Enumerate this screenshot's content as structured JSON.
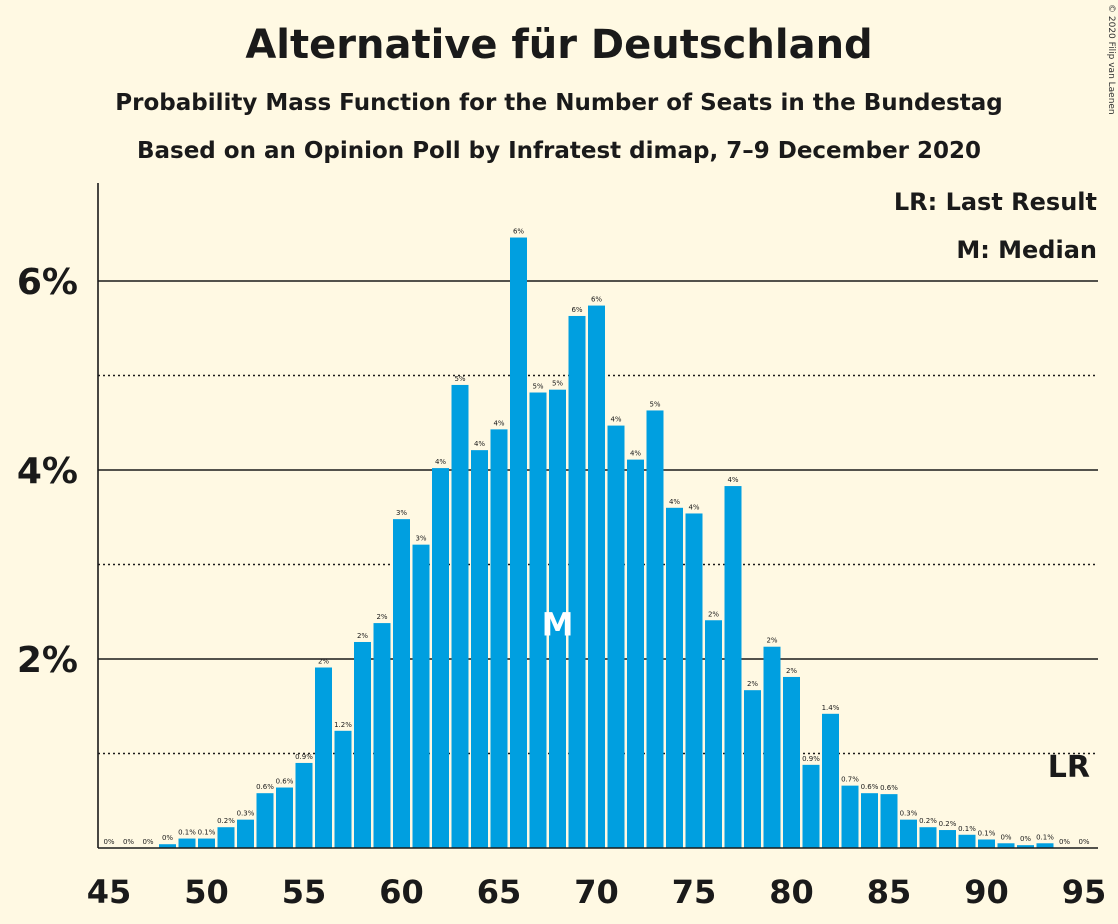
{
  "copyright": "© 2020 Filip van Laenen",
  "chart_data": {
    "type": "bar",
    "title": "Alternative für Deutschland",
    "subtitle": "Probability Mass Function for the Number of Seats in the Bundestag",
    "subtitle2": "Based on an Opinion Poll by Infratest dimap, 7–9 December 2020",
    "x_ticks": [
      "45",
      "50",
      "55",
      "60",
      "65",
      "70",
      "75",
      "80",
      "85",
      "90",
      "95"
    ],
    "y_ticks": [
      "2%",
      "4%",
      "6%"
    ],
    "ylim": [
      0,
      7
    ],
    "legend": {
      "lr": "LR: Last Result",
      "m": "M: Median"
    },
    "median_label": "M",
    "median_seat": 68,
    "last_result_label": "LR",
    "last_result_seat": 94,
    "bars": [
      {
        "seat": 45,
        "value": 0.0,
        "label": "0%"
      },
      {
        "seat": 46,
        "value": 0.0,
        "label": "0%"
      },
      {
        "seat": 47,
        "value": 0.0,
        "label": "0%"
      },
      {
        "seat": 48,
        "value": 0.04,
        "label": "0%"
      },
      {
        "seat": 49,
        "value": 0.1,
        "label": "0.1%"
      },
      {
        "seat": 50,
        "value": 0.1,
        "label": "0.1%"
      },
      {
        "seat": 51,
        "value": 0.22,
        "label": "0.2%"
      },
      {
        "seat": 52,
        "value": 0.3,
        "label": "0.3%"
      },
      {
        "seat": 53,
        "value": 0.58,
        "label": "0.6%"
      },
      {
        "seat": 54,
        "value": 0.64,
        "label": "0.6%"
      },
      {
        "seat": 55,
        "value": 0.9,
        "label": "0.9%"
      },
      {
        "seat": 56,
        "value": 1.91,
        "label": "2%"
      },
      {
        "seat": 57,
        "value": 1.24,
        "label": "1.2%"
      },
      {
        "seat": 58,
        "value": 2.18,
        "label": "2%"
      },
      {
        "seat": 59,
        "value": 2.38,
        "label": "2%"
      },
      {
        "seat": 60,
        "value": 3.48,
        "label": "3%"
      },
      {
        "seat": 61,
        "value": 3.21,
        "label": "3%"
      },
      {
        "seat": 62,
        "value": 4.02,
        "label": "4%"
      },
      {
        "seat": 63,
        "value": 4.9,
        "label": "5%"
      },
      {
        "seat": 64,
        "value": 4.21,
        "label": "4%"
      },
      {
        "seat": 65,
        "value": 4.43,
        "label": "4%"
      },
      {
        "seat": 66,
        "value": 6.46,
        "label": "6%"
      },
      {
        "seat": 67,
        "value": 4.82,
        "label": "5%"
      },
      {
        "seat": 68,
        "value": 4.85,
        "label": "5%"
      },
      {
        "seat": 69,
        "value": 5.63,
        "label": "6%"
      },
      {
        "seat": 70,
        "value": 5.74,
        "label": "6%"
      },
      {
        "seat": 71,
        "value": 4.47,
        "label": "4%"
      },
      {
        "seat": 72,
        "value": 4.11,
        "label": "4%"
      },
      {
        "seat": 73,
        "value": 4.63,
        "label": "5%"
      },
      {
        "seat": 74,
        "value": 3.6,
        "label": "4%"
      },
      {
        "seat": 75,
        "value": 3.54,
        "label": "4%"
      },
      {
        "seat": 76,
        "value": 2.41,
        "label": "2%"
      },
      {
        "seat": 77,
        "value": 3.83,
        "label": "4%"
      },
      {
        "seat": 78,
        "value": 1.67,
        "label": "2%"
      },
      {
        "seat": 79,
        "value": 2.13,
        "label": "2%"
      },
      {
        "seat": 80,
        "value": 1.81,
        "label": "2%"
      },
      {
        "seat": 81,
        "value": 0.88,
        "label": "0.9%"
      },
      {
        "seat": 82,
        "value": 1.42,
        "label": "1.4%"
      },
      {
        "seat": 83,
        "value": 0.66,
        "label": "0.7%"
      },
      {
        "seat": 84,
        "value": 0.58,
        "label": "0.6%"
      },
      {
        "seat": 85,
        "value": 0.57,
        "label": "0.6%"
      },
      {
        "seat": 86,
        "value": 0.3,
        "label": "0.3%"
      },
      {
        "seat": 87,
        "value": 0.22,
        "label": "0.2%"
      },
      {
        "seat": 88,
        "value": 0.19,
        "label": "0.2%"
      },
      {
        "seat": 89,
        "value": 0.14,
        "label": "0.1%"
      },
      {
        "seat": 90,
        "value": 0.09,
        "label": "0.1%"
      },
      {
        "seat": 91,
        "value": 0.05,
        "label": "0%"
      },
      {
        "seat": 92,
        "value": 0.03,
        "label": "0%"
      },
      {
        "seat": 93,
        "value": 0.05,
        "label": "0.1%"
      },
      {
        "seat": 94,
        "value": 0.0,
        "label": "0%"
      },
      {
        "seat": 95,
        "value": 0.0,
        "label": "0%"
      }
    ],
    "colors": {
      "bar": "#009fe0",
      "background": "#fff9e3",
      "text": "#1a1a1a"
    }
  }
}
